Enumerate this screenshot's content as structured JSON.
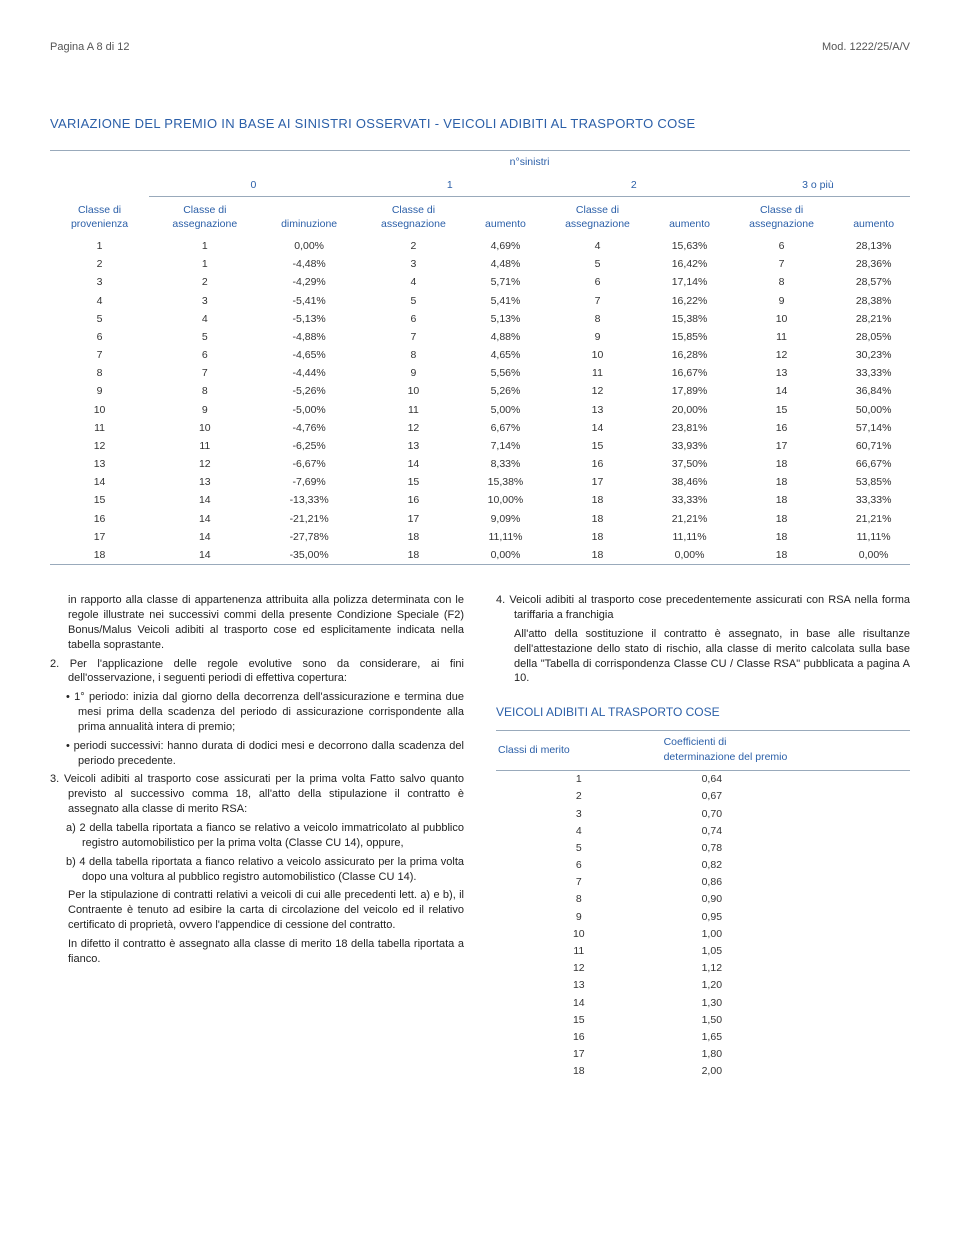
{
  "header": {
    "page_label": "Pagina A 8 di 12",
    "mod_label": "Mod. 1222/25/A/V"
  },
  "section_title": "VARIAZIONE DEL PREMIO IN BASE AI SINISTRI OSSERVATI - VEICOLI ADIBITI AL TRASPORTO COSE",
  "main_table": {
    "super_header": "n°sinistri",
    "group_headers": [
      "0",
      "1",
      "2",
      "3 o più"
    ],
    "col_headers": {
      "c0": "Classe di\nprovenienza",
      "c1": "Classe di\nassegnazione",
      "c2": "diminuzione",
      "c3": "Classe di\nassegnazione",
      "c4": "aumento",
      "c5": "Classe di\nassegnazione",
      "c6": "aumento",
      "c7": "Classe di\nassegnazione",
      "c8": "aumento"
    },
    "rows": [
      [
        "1",
        "1",
        "0,00%",
        "2",
        "4,69%",
        "4",
        "15,63%",
        "6",
        "28,13%"
      ],
      [
        "2",
        "1",
        "-4,48%",
        "3",
        "4,48%",
        "5",
        "16,42%",
        "7",
        "28,36%"
      ],
      [
        "3",
        "2",
        "-4,29%",
        "4",
        "5,71%",
        "6",
        "17,14%",
        "8",
        "28,57%"
      ],
      [
        "4",
        "3",
        "-5,41%",
        "5",
        "5,41%",
        "7",
        "16,22%",
        "9",
        "28,38%"
      ],
      [
        "5",
        "4",
        "-5,13%",
        "6",
        "5,13%",
        "8",
        "15,38%",
        "10",
        "28,21%"
      ],
      [
        "6",
        "5",
        "-4,88%",
        "7",
        "4,88%",
        "9",
        "15,85%",
        "11",
        "28,05%"
      ],
      [
        "7",
        "6",
        "-4,65%",
        "8",
        "4,65%",
        "10",
        "16,28%",
        "12",
        "30,23%"
      ],
      [
        "8",
        "7",
        "-4,44%",
        "9",
        "5,56%",
        "11",
        "16,67%",
        "13",
        "33,33%"
      ],
      [
        "9",
        "8",
        "-5,26%",
        "10",
        "5,26%",
        "12",
        "17,89%",
        "14",
        "36,84%"
      ],
      [
        "10",
        "9",
        "-5,00%",
        "11",
        "5,00%",
        "13",
        "20,00%",
        "15",
        "50,00%"
      ],
      [
        "11",
        "10",
        "-4,76%",
        "12",
        "6,67%",
        "14",
        "23,81%",
        "16",
        "57,14%"
      ],
      [
        "12",
        "11",
        "-6,25%",
        "13",
        "7,14%",
        "15",
        "33,93%",
        "17",
        "60,71%"
      ],
      [
        "13",
        "12",
        "-6,67%",
        "14",
        "8,33%",
        "16",
        "37,50%",
        "18",
        "66,67%"
      ],
      [
        "14",
        "13",
        "-7,69%",
        "15",
        "15,38%",
        "17",
        "38,46%",
        "18",
        "53,85%"
      ],
      [
        "15",
        "14",
        "-13,33%",
        "16",
        "10,00%",
        "18",
        "33,33%",
        "18",
        "33,33%"
      ],
      [
        "16",
        "14",
        "-21,21%",
        "17",
        "9,09%",
        "18",
        "21,21%",
        "18",
        "21,21%"
      ],
      [
        "17",
        "14",
        "-27,78%",
        "18",
        "11,11%",
        "18",
        "11,11%",
        "18",
        "11,11%"
      ],
      [
        "18",
        "14",
        "-35,00%",
        "18",
        "0,00%",
        "18",
        "0,00%",
        "18",
        "0,00%"
      ]
    ]
  },
  "left_col": {
    "p1": "in rapporto alla classe di appartenenza attribuita alla polizza determinata con le regole illustrate nei successivi commi della presente Condizione Speciale (F2) Bonus/Malus Veicoli adibiti al trasporto cose ed esplicitamente indicata nella tabella soprastante.",
    "p2": "2. Per l'applicazione delle regole evolutive sono da considerare, ai fini dell'osservazione, i seguenti periodi di effettiva copertura:",
    "b1": "• 1° periodo: inizia dal giorno della decorrenza dell'assicurazione e termina due mesi prima della scadenza del periodo di assicurazione corrispondente alla prima annualità intera di premio;",
    "b2": "• periodi successivi: hanno durata di dodici mesi e decorrono dalla scadenza del periodo precedente.",
    "p3": "3. Veicoli adibiti al trasporto cose assicurati per la prima volta Fatto salvo quanto previsto al successivo comma 18, all'atto della stipulazione il contratto è assegnato alla classe di merito RSA:",
    "a": "a) 2 della tabella riportata a fianco se relativo a veicolo immatricolato al pubblico registro automobilistico per la prima volta (Classe CU 14), oppure,",
    "b": "b) 4 della tabella riportata a fianco relativo a veicolo assicurato per la prima volta dopo una voltura al pubblico registro automobilistico (Classe CU 14).",
    "p4": "Per la stipulazione di contratti relativi a veicoli di cui alle precedenti lett. a) e b), il Contraente è tenuto ad esibire la carta di circolazione del veicolo ed il relativo certificato di proprietà, ovvero l'appendice di cessione del contratto.",
    "p5": "In difetto il contratto è assegnato alla classe di merito 18 della tabella riportata a fianco."
  },
  "right_col": {
    "p1": "4. Veicoli adibiti al trasporto cose precedentemente assicurati con RSA nella forma tariffaria a franchigia",
    "p2": "All'atto della sostituzione il contratto è assegnato, in base alle risultanze dell'attestazione dello stato di rischio, alla classe di merito calcolata sulla base della \"Tabella di corrispondenza Classe CU / Classe RSA\" pubblicata a pagina A 10.",
    "subtitle": "VEICOLI ADIBITI AL TRASPORTO COSE",
    "coeff_headers": {
      "c0": "Classi di merito",
      "c1": "Coefficienti di\ndeterminazione del premio"
    },
    "coeff_rows": [
      [
        "1",
        "0,64"
      ],
      [
        "2",
        "0,67"
      ],
      [
        "3",
        "0,70"
      ],
      [
        "4",
        "0,74"
      ],
      [
        "5",
        "0,78"
      ],
      [
        "6",
        "0,82"
      ],
      [
        "7",
        "0,86"
      ],
      [
        "8",
        "0,90"
      ],
      [
        "9",
        "0,95"
      ],
      [
        "10",
        "1,00"
      ],
      [
        "11",
        "1,05"
      ],
      [
        "12",
        "1,12"
      ],
      [
        "13",
        "1,20"
      ],
      [
        "14",
        "1,30"
      ],
      [
        "15",
        "1,50"
      ],
      [
        "16",
        "1,65"
      ],
      [
        "17",
        "1,80"
      ],
      [
        "18",
        "2,00"
      ]
    ]
  },
  "style": {
    "accent_color": "#2b5fa8",
    "rule_color": "#9ab",
    "body_font_size": 11,
    "table_font_size": 10.5
  }
}
